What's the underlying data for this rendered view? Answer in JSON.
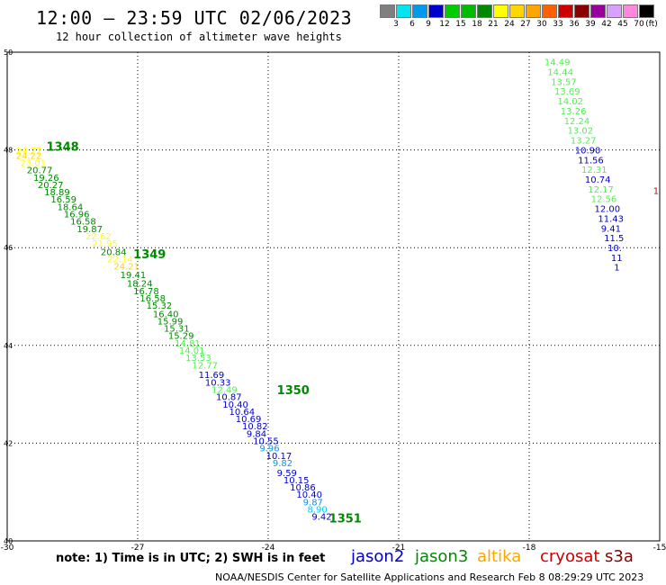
{
  "header": {
    "title": "12:00 – 23:59 UTC 02/06/2023",
    "subtitle": "12 hour collection of altimeter wave heights"
  },
  "colorbar": {
    "unit_label": "(ft)",
    "ticks": [
      "3",
      "6",
      "9",
      "12",
      "15",
      "18",
      "21",
      "24",
      "27",
      "30",
      "33",
      "36",
      "39",
      "42",
      "45",
      "70"
    ],
    "colors": [
      "#7f7f7f",
      "#00e5ee",
      "#0099ee",
      "#0000cc",
      "#00cc00",
      "#00bb00",
      "#008800",
      "#ffff00",
      "#ffd700",
      "#ffa500",
      "#ff6000",
      "#cc0000",
      "#880000",
      "#990099",
      "#d8a0ff",
      "#ff88dd",
      "#000000"
    ]
  },
  "footer": {
    "note": "note: 1) Time is in UTC; 2) SWH is in feet",
    "satellites": [
      {
        "name": "jason2",
        "color": "#0000cc"
      },
      {
        "name": "jason3",
        "color": "#008800"
      },
      {
        "name": "altika",
        "color": "#ffa500"
      },
      {
        "name": "cryosat",
        "color": "#cc0000"
      },
      {
        "name": "s3a",
        "color": "#880000"
      }
    ],
    "credit": "NOAA/NESDIS Center for Satellite Applications and Research    Feb  8 08:29:29 UTC 2023"
  },
  "chart_data": {
    "type": "scatter",
    "title": "12:00 – 23:59 UTC 02/06/2023",
    "xlabel": "",
    "ylabel": "",
    "xlim": [
      -30,
      -15
    ],
    "ylim": [
      40,
      50
    ],
    "x_ticks": [
      "-30",
      "-27",
      "-24",
      "-21",
      "-18",
      "-15"
    ],
    "y_ticks": [
      "40",
      "42",
      "44",
      "46",
      "48",
      "50"
    ],
    "x_tick_values": [
      -30,
      -27,
      -24,
      -21,
      -18,
      -15
    ],
    "y_tick_values": [
      40,
      42,
      44,
      46,
      48,
      50
    ],
    "grid": true,
    "point_colors": {
      "jason3": "#008800",
      "jason2": "#0000cc",
      "light_green": "#55ee55",
      "yellow": "#ffff00",
      "gold": "#ffd700",
      "cyan": "#00ccee",
      "lightblue": "#0099ee"
    },
    "pass_labels": [
      {
        "x": -29.1,
        "y": 47.98,
        "text": "1348",
        "color": "#008800"
      },
      {
        "x": -27.1,
        "y": 45.78,
        "text": "1349",
        "color": "#008800"
      },
      {
        "x": -23.8,
        "y": 43.0,
        "text": "1350",
        "color": "#008800"
      },
      {
        "x": -22.6,
        "y": 40.38,
        "text": "1351",
        "color": "#008800"
      }
    ],
    "points": [
      {
        "x": -29.8,
        "y": 47.92,
        "v": "24.77",
        "c": "yellow"
      },
      {
        "x": -29.8,
        "y": 47.82,
        "v": "24.22",
        "c": "gold"
      },
      {
        "x": -29.7,
        "y": 47.67,
        "v": "23.01",
        "c": "yellow"
      },
      {
        "x": -29.55,
        "y": 47.52,
        "v": "20.77",
        "c": "jason3"
      },
      {
        "x": -29.4,
        "y": 47.37,
        "v": "19.26",
        "c": "jason3"
      },
      {
        "x": -29.3,
        "y": 47.22,
        "v": "20.27",
        "c": "jason3"
      },
      {
        "x": -29.15,
        "y": 47.07,
        "v": "18.89",
        "c": "jason3"
      },
      {
        "x": -29.0,
        "y": 46.92,
        "v": "16.59",
        "c": "jason3"
      },
      {
        "x": -28.85,
        "y": 46.77,
        "v": "18.64",
        "c": "jason3"
      },
      {
        "x": -28.7,
        "y": 46.62,
        "v": "16.96",
        "c": "jason3"
      },
      {
        "x": -28.55,
        "y": 46.47,
        "v": "16.58",
        "c": "jason3"
      },
      {
        "x": -28.4,
        "y": 46.32,
        "v": "19.87",
        "c": "jason3"
      },
      {
        "x": -28.2,
        "y": 46.17,
        "v": "22.62",
        "c": "yellow"
      },
      {
        "x": -28.05,
        "y": 46.02,
        "v": "21.95",
        "c": "yellow"
      },
      {
        "x": -27.85,
        "y": 45.85,
        "v": "20.84",
        "c": "jason3"
      },
      {
        "x": -27.7,
        "y": 45.7,
        "v": "22.14",
        "c": "yellow"
      },
      {
        "x": -27.55,
        "y": 45.55,
        "v": "24.21",
        "c": "gold"
      },
      {
        "x": -27.4,
        "y": 45.38,
        "v": "19.41",
        "c": "jason3"
      },
      {
        "x": -27.25,
        "y": 45.2,
        "v": "18.24",
        "c": "jason3"
      },
      {
        "x": -27.1,
        "y": 45.05,
        "v": "16.78",
        "c": "jason3"
      },
      {
        "x": -26.95,
        "y": 44.9,
        "v": "16.58",
        "c": "jason3"
      },
      {
        "x": -26.8,
        "y": 44.75,
        "v": "15.32",
        "c": "jason3"
      },
      {
        "x": -26.65,
        "y": 44.58,
        "v": "16.40",
        "c": "jason3"
      },
      {
        "x": -26.55,
        "y": 44.43,
        "v": "15.99",
        "c": "jason3"
      },
      {
        "x": -26.4,
        "y": 44.28,
        "v": "15.31",
        "c": "jason3"
      },
      {
        "x": -26.3,
        "y": 44.13,
        "v": "15.29",
        "c": "jason3"
      },
      {
        "x": -26.15,
        "y": 43.98,
        "v": "14.81",
        "c": "light_green"
      },
      {
        "x": -26.05,
        "y": 43.83,
        "v": "14.01",
        "c": "light_green"
      },
      {
        "x": -25.9,
        "y": 43.68,
        "v": "13.53",
        "c": "light_green"
      },
      {
        "x": -25.75,
        "y": 43.53,
        "v": "12.77",
        "c": "light_green"
      },
      {
        "x": -25.6,
        "y": 43.33,
        "v": "11.69",
        "c": "jason2"
      },
      {
        "x": -25.45,
        "y": 43.18,
        "v": "10.33",
        "c": "jason2"
      },
      {
        "x": -25.3,
        "y": 43.03,
        "v": "12.49",
        "c": "light_green"
      },
      {
        "x": -25.2,
        "y": 42.88,
        "v": "10.87",
        "c": "jason2"
      },
      {
        "x": -25.05,
        "y": 42.73,
        "v": "10.40",
        "c": "jason2"
      },
      {
        "x": -24.9,
        "y": 42.58,
        "v": "10.64",
        "c": "jason2"
      },
      {
        "x": -24.75,
        "y": 42.43,
        "v": "10.69",
        "c": "jason2"
      },
      {
        "x": -24.6,
        "y": 42.28,
        "v": "10.82",
        "c": "jason2"
      },
      {
        "x": -24.5,
        "y": 42.13,
        "v": "9.84",
        "c": "jason2"
      },
      {
        "x": -24.35,
        "y": 41.98,
        "v": "10.55",
        "c": "jason2"
      },
      {
        "x": -24.2,
        "y": 41.83,
        "v": "9.96",
        "c": "lightblue"
      },
      {
        "x": -24.05,
        "y": 41.68,
        "v": "10.17",
        "c": "jason2"
      },
      {
        "x": -23.9,
        "y": 41.53,
        "v": "9.82",
        "c": "lightblue"
      },
      {
        "x": -23.8,
        "y": 41.33,
        "v": "9.59",
        "c": "jason2"
      },
      {
        "x": -23.65,
        "y": 41.18,
        "v": "10.15",
        "c": "jason2"
      },
      {
        "x": -23.5,
        "y": 41.03,
        "v": "10.86",
        "c": "jason2"
      },
      {
        "x": -23.35,
        "y": 40.88,
        "v": "10.40",
        "c": "jason2"
      },
      {
        "x": -23.2,
        "y": 40.73,
        "v": "9.87",
        "c": "lightblue"
      },
      {
        "x": -23.1,
        "y": 40.58,
        "v": "8.90",
        "c": "cyan"
      },
      {
        "x": -23.0,
        "y": 40.43,
        "v": "9.42",
        "c": "jason2"
      },
      {
        "x": -17.65,
        "y": 49.73,
        "v": "14.49",
        "c": "light_green"
      },
      {
        "x": -17.58,
        "y": 49.53,
        "v": "14.44",
        "c": "light_green"
      },
      {
        "x": -17.5,
        "y": 49.33,
        "v": "13.57",
        "c": "light_green"
      },
      {
        "x": -17.42,
        "y": 49.13,
        "v": "13.69",
        "c": "light_green"
      },
      {
        "x": -17.35,
        "y": 48.93,
        "v": "14.02",
        "c": "light_green"
      },
      {
        "x": -17.28,
        "y": 48.73,
        "v": "13.26",
        "c": "light_green"
      },
      {
        "x": -17.2,
        "y": 48.53,
        "v": "12.24",
        "c": "light_green"
      },
      {
        "x": -17.12,
        "y": 48.33,
        "v": "13.02",
        "c": "light_green"
      },
      {
        "x": -17.05,
        "y": 48.13,
        "v": "13.27",
        "c": "light_green"
      },
      {
        "x": -16.95,
        "y": 47.93,
        "v": "10.90",
        "c": "jason2"
      },
      {
        "x": -16.88,
        "y": 47.73,
        "v": "11.56",
        "c": "jason2"
      },
      {
        "x": -16.8,
        "y": 47.53,
        "v": "12.31",
        "c": "light_green"
      },
      {
        "x": -16.72,
        "y": 47.33,
        "v": "10.74",
        "c": "jason2"
      },
      {
        "x": -16.65,
        "y": 47.13,
        "v": "12.17",
        "c": "light_green"
      },
      {
        "x": -16.58,
        "y": 46.93,
        "v": "12.56",
        "c": "light_green"
      },
      {
        "x": -16.5,
        "y": 46.73,
        "v": "12.00",
        "c": "jason2"
      },
      {
        "x": -16.42,
        "y": 46.53,
        "v": "11.43",
        "c": "jason2"
      },
      {
        "x": -16.35,
        "y": 46.33,
        "v": "9.41",
        "c": "jason2"
      },
      {
        "x": -16.28,
        "y": 46.13,
        "v": "11.5",
        "c": "jason2"
      },
      {
        "x": -16.2,
        "y": 45.93,
        "v": "10.",
        "c": "jason2"
      },
      {
        "x": -16.12,
        "y": 45.73,
        "v": "11",
        "c": "jason2"
      },
      {
        "x": -16.05,
        "y": 45.53,
        "v": "1",
        "c": "jason2"
      },
      {
        "x": -15.15,
        "y": 47.1,
        "v": "1",
        "c": "cryosat"
      }
    ]
  }
}
